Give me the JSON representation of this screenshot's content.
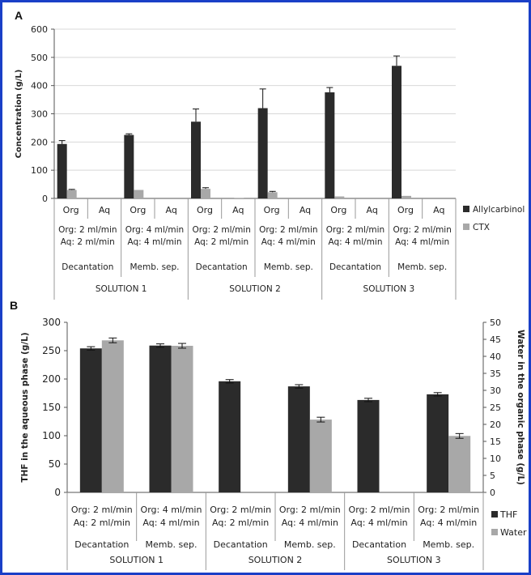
{
  "colors": {
    "frame": "#1a3fc7",
    "dark": "#2b2b2b",
    "light": "#a8a8a8",
    "grid": "#d8d8d8",
    "axis": "#555555"
  },
  "chart_data": [
    {
      "panel": "A",
      "type": "bar",
      "ylabel": "Concentration (g/L)",
      "ylim": [
        0,
        600
      ],
      "yticks": [
        "0",
        "100",
        "200",
        "300",
        "400",
        "500",
        "600"
      ],
      "grid": true,
      "legend_position": "right",
      "categories": [
        {
          "phase": "Org",
          "flow": [
            "Org: 2 ml/min",
            "Aq: 2 ml/min"
          ],
          "method": "Decantation",
          "solution": "SOLUTION 1"
        },
        {
          "phase": "Aq",
          "flow": [
            "Org: 2 ml/min",
            "Aq: 2 ml/min"
          ],
          "method": "Decantation",
          "solution": "SOLUTION 1"
        },
        {
          "phase": "Org",
          "flow": [
            "Org: 4 ml/min",
            "Aq: 4 ml/min"
          ],
          "method": "Memb. sep.",
          "solution": "SOLUTION 1"
        },
        {
          "phase": "Aq",
          "flow": [
            "Org: 4 ml/min",
            "Aq: 4 ml/min"
          ],
          "method": "Memb. sep.",
          "solution": "SOLUTION 1"
        },
        {
          "phase": "Org",
          "flow": [
            "Org: 2 ml/min",
            "Aq: 2 ml/min"
          ],
          "method": "Decantation",
          "solution": "SOLUTION 2"
        },
        {
          "phase": "Aq",
          "flow": [
            "Org: 2 ml/min",
            "Aq: 2 ml/min"
          ],
          "method": "Decantation",
          "solution": "SOLUTION 2"
        },
        {
          "phase": "Org",
          "flow": [
            "Org: 2 ml/min",
            "Aq: 4 ml/min"
          ],
          "method": "Memb. sep.",
          "solution": "SOLUTION 2"
        },
        {
          "phase": "Aq",
          "flow": [
            "Org: 2 ml/min",
            "Aq: 4 ml/min"
          ],
          "method": "Memb. sep.",
          "solution": "SOLUTION 2"
        },
        {
          "phase": "Org",
          "flow": [
            "Org: 2 ml/min",
            "Aq: 4 ml/min"
          ],
          "method": "Decantation",
          "solution": "SOLUTION 3"
        },
        {
          "phase": "Aq",
          "flow": [
            "Org: 2 ml/min",
            "Aq: 4 ml/min"
          ],
          "method": "Decantation",
          "solution": "SOLUTION 3"
        },
        {
          "phase": "Org",
          "flow": [
            "Org: 2 ml/min",
            "Aq: 4 ml/min"
          ],
          "method": "Memb. sep.",
          "solution": "SOLUTION 3"
        },
        {
          "phase": "Aq",
          "flow": [
            "Org: 2 ml/min",
            "Aq: 4 ml/min"
          ],
          "method": "Memb. sep.",
          "solution": "SOLUTION 3"
        }
      ],
      "series": [
        {
          "name": "Allylcarbinol",
          "color": "#2b2b2b",
          "values": [
            193,
            0,
            225,
            0,
            272,
            0,
            320,
            0,
            376,
            0,
            470,
            0
          ],
          "errors": [
            12,
            0,
            4,
            0,
            45,
            0,
            68,
            0,
            17,
            0,
            35,
            0
          ]
        },
        {
          "name": "CTX",
          "color": "#a8a8a8",
          "values": [
            30,
            0,
            30,
            0,
            34,
            2,
            22,
            0,
            7,
            0,
            9,
            0
          ],
          "errors": [
            2,
            0,
            0,
            0,
            4,
            0,
            3,
            0,
            0,
            0,
            0,
            0
          ]
        }
      ]
    },
    {
      "panel": "B",
      "type": "bar",
      "ylabel": "THF in the aqueous phase (g/L)",
      "y2label": "Water in the organic phase (g/L)",
      "ylim": [
        0,
        300
      ],
      "y2lim": [
        0,
        50
      ],
      "yticks": [
        "0",
        "50",
        "100",
        "150",
        "200",
        "250",
        "300"
      ],
      "y2ticks": [
        "0",
        "5",
        "10",
        "15",
        "20",
        "25",
        "30",
        "35",
        "40",
        "45",
        "50"
      ],
      "grid": false,
      "legend_position": "right",
      "categories": [
        {
          "flow": [
            "Org: 2 ml/min",
            "Aq: 2 ml/min"
          ],
          "method": "Decantation",
          "solution": "SOLUTION 1"
        },
        {
          "flow": [
            "Org: 4 ml/min",
            "Aq: 4 ml/min"
          ],
          "method": "Memb. sep.",
          "solution": "SOLUTION 1"
        },
        {
          "flow": [
            "Org: 2 ml/min",
            "Aq: 2 ml/min"
          ],
          "method": "Decantation",
          "solution": "SOLUTION 2"
        },
        {
          "flow": [
            "Org: 2 ml/min",
            "Aq: 4 ml/min"
          ],
          "method": "Memb. sep.",
          "solution": "SOLUTION 2"
        },
        {
          "flow": [
            "Org: 2 ml/min",
            "Aq: 4 ml/min"
          ],
          "method": "Decantation",
          "solution": "SOLUTION 3"
        },
        {
          "flow": [
            "Org: 2 ml/min",
            "Aq: 4 ml/min"
          ],
          "method": "Memb. sep.",
          "solution": "SOLUTION 3"
        }
      ],
      "series": [
        {
          "name": "THF",
          "axis": "left",
          "color": "#2b2b2b",
          "values": [
            254,
            259,
            196,
            187,
            163,
            173
          ],
          "errors": [
            3,
            3,
            3,
            3,
            3,
            3
          ]
        },
        {
          "name": "Water",
          "axis": "right",
          "color": "#a8a8a8",
          "values": [
            44.7,
            43.1,
            0,
            21.4,
            0,
            16.6
          ],
          "errors": [
            0.7,
            0.7,
            0,
            0.7,
            0,
            0.7
          ]
        }
      ]
    }
  ]
}
